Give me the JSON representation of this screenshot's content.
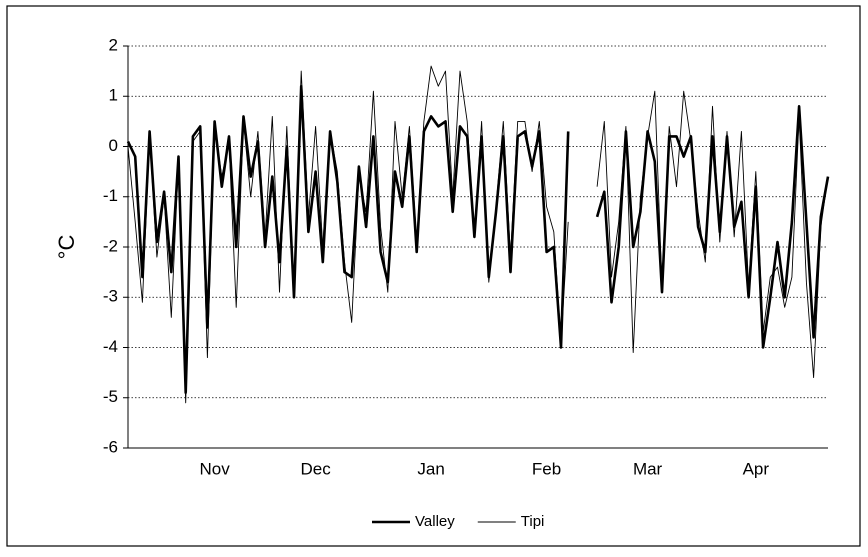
{
  "chart_data": {
    "type": "line",
    "ylabel": "°C",
    "categories": [
      null,
      null,
      null,
      null,
      null,
      null,
      null,
      null,
      null,
      null,
      null,
      null,
      "Nov",
      null,
      null,
      null,
      null,
      null,
      null,
      null,
      null,
      null,
      null,
      null,
      null,
      null,
      "Dec",
      null,
      null,
      null,
      null,
      null,
      null,
      null,
      null,
      null,
      null,
      null,
      null,
      null,
      null,
      null,
      "Jan",
      null,
      null,
      null,
      null,
      null,
      null,
      null,
      null,
      null,
      null,
      null,
      null,
      null,
      null,
      null,
      "Feb",
      null,
      null,
      null,
      null,
      null,
      null,
      null,
      null,
      null,
      null,
      null,
      null,
      null,
      "Mar",
      null,
      null,
      null,
      null,
      null,
      null,
      null,
      null,
      null,
      null,
      null,
      null,
      null,
      null,
      "Apr",
      null,
      null,
      null,
      null,
      null,
      null,
      null,
      null,
      null,
      null
    ],
    "series": [
      {
        "name": "Valley",
        "color": "#000000",
        "width": 2.6,
        "values": [
          0.1,
          -0.2,
          -2.6,
          0.3,
          -1.9,
          -0.9,
          -2.5,
          -0.2,
          -4.9,
          0.2,
          0.4,
          -3.6,
          0.5,
          -0.8,
          0.2,
          -2.0,
          0.6,
          -0.6,
          0.1,
          -2.0,
          -0.6,
          -2.3,
          0.0,
          -3.0,
          1.2,
          -1.7,
          -0.5,
          -2.3,
          0.3,
          -0.7,
          -2.5,
          -2.6,
          -0.4,
          -1.6,
          0.2,
          -2.1,
          -2.7,
          -0.5,
          -1.2,
          0.2,
          -2.1,
          0.3,
          0.6,
          0.4,
          0.5,
          -1.3,
          0.4,
          0.2,
          -1.8,
          0.2,
          -2.6,
          -1.3,
          0.2,
          -2.5,
          0.2,
          0.3,
          -0.4,
          0.3,
          -2.1,
          -2.0,
          -4.0,
          0.3,
          null,
          null,
          null,
          -1.4,
          -0.9,
          -3.1,
          -2.0,
          0.3,
          -2.0,
          -1.3,
          0.3,
          -0.3,
          -2.9,
          0.2,
          0.2,
          -0.2,
          0.2,
          -1.6,
          -2.1,
          0.2,
          -1.7,
          0.2,
          -1.6,
          -1.1,
          -3.0,
          -0.8,
          -4.0,
          -3.0,
          -1.9,
          -3.0,
          -1.5,
          0.8,
          -1.5,
          -3.8,
          -1.4,
          -0.6
        ]
      },
      {
        "name": "Tipi",
        "color": "#000000",
        "width": 0.9,
        "values": [
          0.0,
          -1.5,
          -3.1,
          0.2,
          -2.2,
          -1.0,
          -3.4,
          -0.3,
          -5.1,
          0.1,
          0.3,
          -4.2,
          0.4,
          -0.6,
          0.1,
          -3.2,
          0.5,
          -1.0,
          0.3,
          -1.8,
          0.6,
          -2.9,
          0.4,
          -2.9,
          1.5,
          -1.4,
          0.4,
          -2.0,
          0.3,
          -0.5,
          -2.3,
          -3.5,
          -0.6,
          -1.3,
          1.1,
          -1.6,
          -2.9,
          0.5,
          -1.0,
          0.4,
          -1.9,
          0.5,
          1.6,
          1.2,
          1.5,
          -1.0,
          1.5,
          0.5,
          -1.8,
          0.5,
          -2.7,
          -1.2,
          0.5,
          -2.2,
          0.5,
          0.5,
          -0.5,
          0.5,
          -1.2,
          -1.7,
          -3.9,
          -1.5,
          null,
          null,
          null,
          -0.8,
          0.5,
          -2.6,
          -1.5,
          0.4,
          -4.1,
          -1.0,
          0.2,
          1.1,
          -2.8,
          0.4,
          -0.8,
          1.1,
          0.1,
          -1.3,
          -2.3,
          0.8,
          -1.9,
          0.3,
          -1.8,
          0.3,
          -2.8,
          -0.5,
          -3.7,
          -2.6,
          -2.4,
          -3.2,
          -2.6,
          0.6,
          -2.7,
          -4.6,
          -1.6,
          -0.6
        ]
      }
    ],
    "ylim": [
      -6,
      2
    ],
    "yticks": [
      -6,
      -5,
      -4,
      -3,
      -2,
      -1,
      0,
      1,
      2
    ],
    "grid": true,
    "legend": "bottom"
  }
}
